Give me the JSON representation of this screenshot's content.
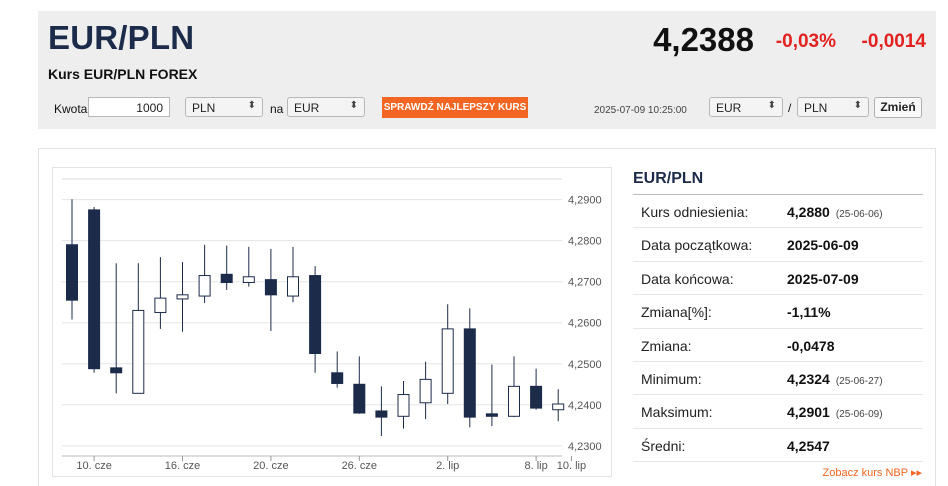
{
  "header": {
    "pair": "EUR/PLN",
    "subtitle": "Kurs EUR/PLN FOREX",
    "rate": "4,2388",
    "change_pct": "-0,03%",
    "change_abs": "-0,0014"
  },
  "converter": {
    "amount_label": "Kwota",
    "amount_value": "1000",
    "from_currency": "PLN",
    "to_label": "na",
    "to_currency": "EUR",
    "best_rate_button": "SPRAWDŹ NAJLEPSZY KURS",
    "timestamp": "2025-07-09 10:25:00",
    "pair_base": "EUR",
    "pair_sep": "/",
    "pair_quote": "PLN",
    "change_button": "Zmień"
  },
  "stats": {
    "title": "EUR/PLN",
    "rows": [
      {
        "label": "Kurs odniesienia:",
        "value": "4,2880",
        "date": "(25-06-06)"
      },
      {
        "label": "Data początkowa:",
        "value": "2025-06-09",
        "date": ""
      },
      {
        "label": "Data końcowa:",
        "value": "2025-07-09",
        "date": ""
      },
      {
        "label": "Zmiana[%]:",
        "value": "-1,11%",
        "date": ""
      },
      {
        "label": "Zmiana:",
        "value": "-0,0478",
        "date": ""
      },
      {
        "label": "Minimum:",
        "value": "4,2324",
        "date": "(25-06-27)"
      },
      {
        "label": "Maksimum:",
        "value": "4,2901",
        "date": "(25-06-09)"
      },
      {
        "label": "Średni:",
        "value": "4,2547",
        "date": ""
      }
    ],
    "nbp_link": "Zobacz kurs NBP ▸▸"
  },
  "colors": {
    "accent": "#f26522",
    "negative": "#e3211f",
    "candle_down": "#1c2b4a",
    "candle_up": "#ffffff"
  },
  "chart_data": {
    "type": "candlestick",
    "y_ticks": [
      "4,2900",
      "4,2800",
      "4,2700",
      "4,2600",
      "4,2500",
      "4,2400",
      "4,2300"
    ],
    "ylim": [
      4.2285,
      4.296
    ],
    "x_ticks": [
      {
        "label": "10. cze",
        "index": 1
      },
      {
        "label": "16. cze",
        "index": 5
      },
      {
        "label": "20. cze",
        "index": 9
      },
      {
        "label": "26. cze",
        "index": 13
      },
      {
        "label": "2. lip",
        "index": 17
      },
      {
        "label": "8. lip",
        "index": 21
      },
      {
        "label": "10. lip",
        "index": 22.6
      }
    ],
    "candles": [
      {
        "open": 4.279,
        "high": 4.2901,
        "low": 4.2608,
        "close": 4.2655
      },
      {
        "open": 4.2875,
        "high": 4.2882,
        "low": 4.2478,
        "close": 4.2488
      },
      {
        "open": 4.249,
        "high": 4.2745,
        "low": 4.2428,
        "close": 4.2478
      },
      {
        "open": 4.2428,
        "high": 4.2745,
        "low": 4.2428,
        "close": 4.263
      },
      {
        "open": 4.2625,
        "high": 4.276,
        "low": 4.2585,
        "close": 4.266
      },
      {
        "open": 4.2658,
        "high": 4.2748,
        "low": 4.2578,
        "close": 4.2668
      },
      {
        "open": 4.2665,
        "high": 4.279,
        "low": 4.2648,
        "close": 4.2715
      },
      {
        "open": 4.2718,
        "high": 4.2788,
        "low": 4.268,
        "close": 4.2698
      },
      {
        "open": 4.2698,
        "high": 4.2785,
        "low": 4.2688,
        "close": 4.2712
      },
      {
        "open": 4.2705,
        "high": 4.278,
        "low": 4.258,
        "close": 4.2668
      },
      {
        "open": 4.2665,
        "high": 4.2785,
        "low": 4.265,
        "close": 4.2712
      },
      {
        "open": 4.2715,
        "high": 4.2738,
        "low": 4.2478,
        "close": 4.2525
      },
      {
        "open": 4.2478,
        "high": 4.253,
        "low": 4.2442,
        "close": 4.2452
      },
      {
        "open": 4.245,
        "high": 4.2518,
        "low": 4.2378,
        "close": 4.238
      },
      {
        "open": 4.2385,
        "high": 4.2445,
        "low": 4.2324,
        "close": 4.237
      },
      {
        "open": 4.2372,
        "high": 4.2458,
        "low": 4.2342,
        "close": 4.2425
      },
      {
        "open": 4.2405,
        "high": 4.2505,
        "low": 4.2365,
        "close": 4.2462
      },
      {
        "open": 4.2428,
        "high": 4.2645,
        "low": 4.2402,
        "close": 4.2585
      },
      {
        "open": 4.2585,
        "high": 4.2635,
        "low": 4.2345,
        "close": 4.237
      },
      {
        "open": 4.2378,
        "high": 4.2498,
        "low": 4.2348,
        "close": 4.2372
      },
      {
        "open": 4.2372,
        "high": 4.2518,
        "low": 4.237,
        "close": 4.2445
      },
      {
        "open": 4.2445,
        "high": 4.2488,
        "low": 4.2388,
        "close": 4.2392
      },
      {
        "open": 4.2388,
        "high": 4.2438,
        "low": 4.236,
        "close": 4.2402
      }
    ]
  }
}
